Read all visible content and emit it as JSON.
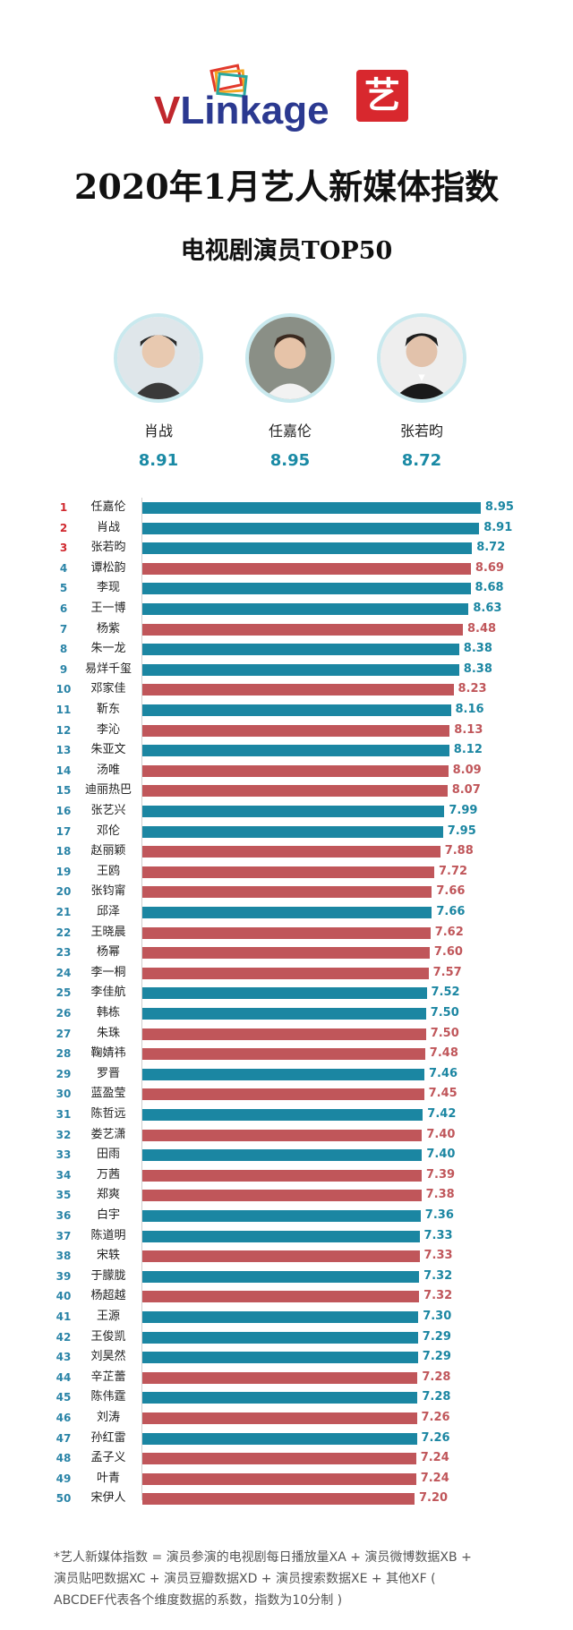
{
  "brand": {
    "v": "V",
    "rest": "Linkage",
    "badge": "艺"
  },
  "title": "2020年1月艺人新媒体指数",
  "subtitle": "电视剧演员TOP50",
  "top3": [
    {
      "name": "肖战",
      "score": "8.91"
    },
    {
      "name": "任嘉伦",
      "score": "8.95"
    },
    {
      "name": "张若昀",
      "score": "8.72"
    }
  ],
  "colors": {
    "blue": "#1b86a2",
    "red": "#c0565a",
    "rank_top": "#d0282e",
    "rank": "#2a84a7"
  },
  "chart_data": {
    "type": "bar",
    "orientation": "horizontal",
    "xlim": [
      0,
      9
    ],
    "rows": [
      {
        "rank": 1,
        "name": "任嘉伦",
        "value": 8.95,
        "color": "blue"
      },
      {
        "rank": 2,
        "name": "肖战",
        "value": 8.91,
        "color": "blue"
      },
      {
        "rank": 3,
        "name": "张若昀",
        "value": 8.72,
        "color": "blue"
      },
      {
        "rank": 4,
        "name": "谭松韵",
        "value": 8.69,
        "color": "red"
      },
      {
        "rank": 5,
        "name": "李现",
        "value": 8.68,
        "color": "blue"
      },
      {
        "rank": 6,
        "name": "王一博",
        "value": 8.63,
        "color": "blue"
      },
      {
        "rank": 7,
        "name": "杨紫",
        "value": 8.48,
        "color": "red"
      },
      {
        "rank": 8,
        "name": "朱一龙",
        "value": 8.38,
        "color": "blue"
      },
      {
        "rank": 9,
        "name": "易烊千玺",
        "value": 8.38,
        "color": "blue"
      },
      {
        "rank": 10,
        "name": "邓家佳",
        "value": 8.23,
        "color": "red"
      },
      {
        "rank": 11,
        "name": "靳东",
        "value": 8.16,
        "color": "blue"
      },
      {
        "rank": 12,
        "name": "李沁",
        "value": 8.13,
        "color": "red"
      },
      {
        "rank": 13,
        "name": "朱亚文",
        "value": 8.12,
        "color": "blue"
      },
      {
        "rank": 14,
        "name": "汤唯",
        "value": 8.09,
        "color": "red"
      },
      {
        "rank": 15,
        "name": "迪丽热巴",
        "value": 8.07,
        "color": "red"
      },
      {
        "rank": 16,
        "name": "张艺兴",
        "value": 7.99,
        "color": "blue"
      },
      {
        "rank": 17,
        "name": "邓伦",
        "value": 7.95,
        "color": "blue"
      },
      {
        "rank": 18,
        "name": "赵丽颖",
        "value": 7.88,
        "color": "red"
      },
      {
        "rank": 19,
        "name": "王鸥",
        "value": 7.72,
        "color": "red"
      },
      {
        "rank": 20,
        "name": "张钧甯",
        "value": 7.66,
        "color": "red"
      },
      {
        "rank": 21,
        "name": "邱泽",
        "value": 7.66,
        "color": "blue"
      },
      {
        "rank": 22,
        "name": "王晓晨",
        "value": 7.62,
        "color": "red"
      },
      {
        "rank": 23,
        "name": "杨幂",
        "value": 7.6,
        "color": "red"
      },
      {
        "rank": 24,
        "name": "李一桐",
        "value": 7.57,
        "color": "red"
      },
      {
        "rank": 25,
        "name": "李佳航",
        "value": 7.52,
        "color": "blue"
      },
      {
        "rank": 26,
        "name": "韩栋",
        "value": 7.5,
        "color": "blue"
      },
      {
        "rank": 27,
        "name": "朱珠",
        "value": 7.5,
        "color": "red"
      },
      {
        "rank": 28,
        "name": "鞠婧祎",
        "value": 7.48,
        "color": "red"
      },
      {
        "rank": 29,
        "name": "罗晋",
        "value": 7.46,
        "color": "blue"
      },
      {
        "rank": 30,
        "name": "蓝盈莹",
        "value": 7.45,
        "color": "red"
      },
      {
        "rank": 31,
        "name": "陈哲远",
        "value": 7.42,
        "color": "blue"
      },
      {
        "rank": 32,
        "name": "娄艺潇",
        "value": 7.4,
        "color": "red"
      },
      {
        "rank": 33,
        "name": "田雨",
        "value": 7.4,
        "color": "blue"
      },
      {
        "rank": 34,
        "name": "万茜",
        "value": 7.39,
        "color": "red"
      },
      {
        "rank": 35,
        "name": "郑爽",
        "value": 7.38,
        "color": "red"
      },
      {
        "rank": 36,
        "name": "白宇",
        "value": 7.36,
        "color": "blue"
      },
      {
        "rank": 37,
        "name": "陈道明",
        "value": 7.33,
        "color": "blue"
      },
      {
        "rank": 38,
        "name": "宋轶",
        "value": 7.33,
        "color": "red"
      },
      {
        "rank": 39,
        "name": "于朦胧",
        "value": 7.32,
        "color": "blue"
      },
      {
        "rank": 40,
        "name": "杨超越",
        "value": 7.32,
        "color": "red"
      },
      {
        "rank": 41,
        "name": "王源",
        "value": 7.3,
        "color": "blue"
      },
      {
        "rank": 42,
        "name": "王俊凯",
        "value": 7.29,
        "color": "blue"
      },
      {
        "rank": 43,
        "name": "刘昊然",
        "value": 7.29,
        "color": "blue"
      },
      {
        "rank": 44,
        "name": "辛芷蕾",
        "value": 7.28,
        "color": "red"
      },
      {
        "rank": 45,
        "name": "陈伟霆",
        "value": 7.28,
        "color": "blue"
      },
      {
        "rank": 46,
        "name": "刘涛",
        "value": 7.26,
        "color": "red"
      },
      {
        "rank": 47,
        "name": "孙红雷",
        "value": 7.26,
        "color": "blue"
      },
      {
        "rank": 48,
        "name": "孟子义",
        "value": 7.24,
        "color": "red"
      },
      {
        "rank": 49,
        "name": "叶青",
        "value": 7.24,
        "color": "red"
      },
      {
        "rank": 50,
        "name": "宋伊人",
        "value": 7.2,
        "color": "red"
      }
    ]
  },
  "footnote": [
    "*艺人新媒体指数 = 演员参演的电视剧每日播放量XA + 演员微博数据XB +",
    "演员贴吧数据XC + 演员豆瓣数据XD + 演员搜索数据XE + 其他XF (",
    "ABCDEF代表各个维度数据的系数，指数为10分制 )"
  ]
}
